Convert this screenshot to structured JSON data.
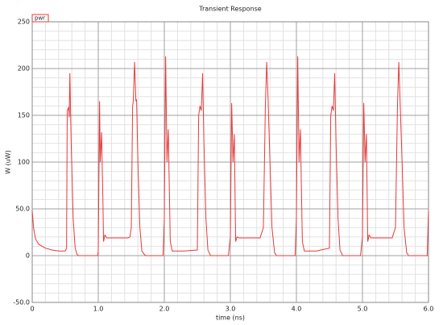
{
  "chart_data": {
    "type": "line",
    "title": "Transient Response",
    "xlabel": "time (ns)",
    "ylabel": "W (uW)",
    "x": [
      0,
      0.02,
      0.05,
      0.1,
      0.2,
      0.3,
      0.4,
      0.5,
      0.52,
      0.53,
      0.55,
      0.56,
      0.57,
      0.59,
      0.62,
      0.65,
      0.68,
      0.7,
      0.99,
      1.0,
      1.02,
      1.03,
      1.05,
      1.07,
      1.08,
      1.1,
      1.13,
      1.45,
      1.48,
      1.5,
      1.52,
      1.53,
      1.55,
      1.57,
      1.58,
      1.6,
      1.63,
      1.66,
      1.7,
      1.72,
      1.98,
      2.0,
      2.02,
      2.04,
      2.06,
      2.09,
      2.12,
      2.3,
      2.5,
      2.52,
      2.54,
      2.56,
      2.58,
      2.6,
      2.63,
      2.66,
      2.7,
      2.97,
      3.0,
      3.02,
      3.04,
      3.06,
      3.08,
      3.1,
      3.13,
      3.45,
      3.5,
      3.53,
      3.55,
      3.57,
      3.6,
      3.63,
      3.67,
      3.7,
      3.98,
      4.0,
      4.02,
      4.04,
      4.06,
      4.09,
      4.12,
      4.3,
      4.5,
      4.52,
      4.54,
      4.56,
      4.58,
      4.6,
      4.63,
      4.66,
      4.7,
      4.97,
      5.0,
      5.02,
      5.04,
      5.06,
      5.08,
      5.1,
      5.13,
      5.45,
      5.5,
      5.53,
      5.55,
      5.57,
      5.6,
      5.63,
      5.67,
      5.7,
      5.98,
      6.0
    ],
    "series": [
      {
        "name": "pwr",
        "color": "#e8393a",
        "values": [
          48,
          30,
          18,
          12,
          8,
          6,
          5,
          5,
          8,
          155,
          158,
          148,
          195,
          120,
          40,
          8,
          1,
          0,
          0,
          5,
          165,
          100,
          132,
          60,
          15,
          22,
          19,
          19,
          20,
          30,
          160,
          165,
          207,
          165,
          167,
          100,
          30,
          5,
          1,
          0,
          0,
          40,
          213,
          100,
          135,
          15,
          5,
          5,
          6,
          150,
          160,
          155,
          195,
          120,
          40,
          6,
          0,
          0,
          20,
          163,
          100,
          130,
          15,
          20,
          19,
          19,
          30,
          160,
          207,
          170,
          100,
          30,
          3,
          0,
          0,
          40,
          213,
          100,
          135,
          15,
          5,
          5,
          8,
          150,
          160,
          155,
          195,
          120,
          40,
          6,
          0,
          0,
          20,
          163,
          100,
          130,
          15,
          22,
          19,
          19,
          30,
          160,
          207,
          165,
          100,
          30,
          3,
          0,
          0,
          48
        ]
      }
    ],
    "xlim": [
      0,
      6
    ],
    "xticks": [
      0,
      {
        "value": 1,
        "label": "1.0"
      },
      {
        "value": 2,
        "label": "2.0"
      },
      {
        "value": 3,
        "label": "3.0"
      },
      {
        "value": 4,
        "label": "4.0"
      },
      {
        "value": 5,
        "label": "5.0"
      },
      {
        "value": 6,
        "label": "6.0"
      }
    ],
    "ylim": [
      -50,
      250
    ],
    "yticks": [
      {
        "value": -50,
        "label": "-50.0"
      },
      0,
      {
        "value": 50,
        "label": "50.0"
      },
      100,
      150,
      200,
      250
    ],
    "grid": true
  }
}
